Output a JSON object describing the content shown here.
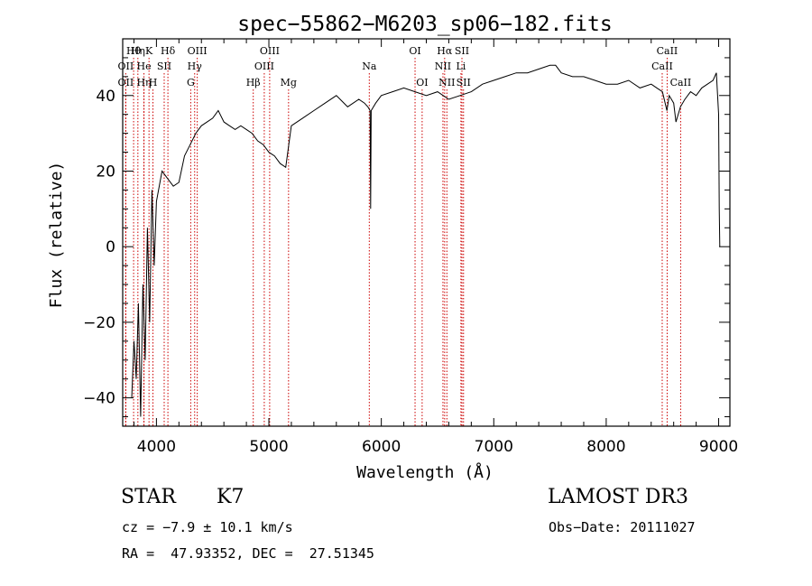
{
  "chart_data": {
    "type": "line",
    "title": "spec−55862−M6203_sp06−182.fits",
    "xlabel": "Wavelength (Å)",
    "ylabel": "Flux (relative)",
    "xlim": [
      3700,
      9100
    ],
    "ylim": [
      -47.5,
      55
    ],
    "xticks": [
      4000,
      5000,
      6000,
      7000,
      8000,
      9000
    ],
    "yticks": [
      -40,
      -20,
      0,
      20,
      40
    ],
    "tick_labels": {
      "x": [
        "4000",
        "5000",
        "6000",
        "7000",
        "8000",
        "9000"
      ],
      "y": [
        "−40",
        "−20",
        "0",
        "20",
        "40"
      ]
    },
    "series": [
      {
        "name": "flux",
        "x": [
          3700,
          3780,
          3800,
          3820,
          3840,
          3860,
          3880,
          3900,
          3920,
          3940,
          3960,
          3980,
          4000,
          4050,
          4100,
          4150,
          4200,
          4250,
          4300,
          4350,
          4400,
          4450,
          4500,
          4550,
          4600,
          4650,
          4700,
          4750,
          4800,
          4850,
          4900,
          4950,
          5000,
          5050,
          5100,
          5150,
          5200,
          5300,
          5400,
          5500,
          5600,
          5700,
          5800,
          5850,
          5880,
          5900,
          5905,
          5910,
          5950,
          6000,
          6100,
          6200,
          6300,
          6400,
          6500,
          6550,
          6600,
          6700,
          6800,
          6900,
          7000,
          7100,
          7200,
          7300,
          7400,
          7500,
          7550,
          7600,
          7700,
          7800,
          7900,
          8000,
          8100,
          8200,
          8300,
          8400,
          8450,
          8500,
          8540,
          8560,
          8600,
          8620,
          8660,
          8700,
          8750,
          8800,
          8850,
          8900,
          8950,
          8980,
          9000,
          9005,
          9010,
          9020
        ],
        "y": [
          null,
          -40,
          -25,
          -35,
          -15,
          -45,
          -10,
          -30,
          5,
          -20,
          15,
          -5,
          12,
          20,
          18,
          16,
          17,
          24,
          27,
          30,
          32,
          33,
          34,
          36,
          33,
          32,
          31,
          32,
          31,
          30,
          28,
          27,
          25,
          24,
          22,
          21,
          32,
          34,
          36,
          38,
          40,
          37,
          39,
          38,
          37,
          36,
          10,
          36,
          38,
          40,
          41,
          42,
          41,
          40,
          41,
          40,
          39,
          40,
          41,
          43,
          44,
          45,
          46,
          46,
          47,
          48,
          48,
          46,
          45,
          45,
          44,
          43,
          43,
          44,
          42,
          43,
          42,
          41,
          36,
          40,
          38,
          33,
          37,
          39,
          41,
          40,
          42,
          43,
          44,
          46,
          35,
          10,
          0,
          null
        ]
      }
    ],
    "line_markers": [
      {
        "label": "Hθ",
        "wavelength": 3797,
        "row": 1
      },
      {
        "label": "OII",
        "wavelength": 3727,
        "row": 2
      },
      {
        "label": "OII",
        "wavelength": 3727,
        "row": 3
      },
      {
        "label": "Hη",
        "wavelength": 3835,
        "row": 1
      },
      {
        "label": "He",
        "wavelength": 3889,
        "row": 2
      },
      {
        "label": "Hη",
        "wavelength": 3889,
        "row": 3
      },
      {
        "label": "K",
        "wavelength": 3934,
        "row": 1
      },
      {
        "label": "H",
        "wavelength": 3969,
        "row": 3
      },
      {
        "label": "SII",
        "wavelength": 4069,
        "row": 2
      },
      {
        "label": "Hδ",
        "wavelength": 4102,
        "row": 1
      },
      {
        "label": "OIII",
        "wavelength": 4363,
        "row": 1
      },
      {
        "label": "Hγ",
        "wavelength": 4340,
        "row": 2
      },
      {
        "label": "G",
        "wavelength": 4305,
        "row": 3
      },
      {
        "label": "Hβ",
        "wavelength": 4861,
        "row": 3
      },
      {
        "label": "OIII",
        "wavelength": 4959,
        "row": 2
      },
      {
        "label": "OIII",
        "wavelength": 5007,
        "row": 1
      },
      {
        "label": "Mg",
        "wavelength": 5175,
        "row": 3
      },
      {
        "label": "Na",
        "wavelength": 5893,
        "row": 2
      },
      {
        "label": "OI",
        "wavelength": 6300,
        "row": 1
      },
      {
        "label": "OI",
        "wavelength": 6363,
        "row": 3
      },
      {
        "label": "Hα",
        "wavelength": 6563,
        "row": 1
      },
      {
        "label": "NII",
        "wavelength": 6548,
        "row": 2
      },
      {
        "label": "NII",
        "wavelength": 6583,
        "row": 3
      },
      {
        "label": "SII",
        "wavelength": 6717,
        "row": 1
      },
      {
        "label": "Li",
        "wavelength": 6708,
        "row": 2
      },
      {
        "label": "SII",
        "wavelength": 6731,
        "row": 3
      },
      {
        "label": "CaII",
        "wavelength": 8542,
        "row": 1
      },
      {
        "label": "CaII",
        "wavelength": 8498,
        "row": 2
      },
      {
        "label": "CaII",
        "wavelength": 8662,
        "row": 3
      }
    ]
  },
  "info": {
    "object_class": "STAR",
    "subclass": "K7",
    "survey": "LAMOST DR3",
    "redshift_line": "cz = −7.9 ± 10.1 km/s",
    "obs_date_line": "Obs−Date: 20111027",
    "coords_line": "RA =  47.93352, DEC =  27.51345"
  },
  "colors": {
    "marker": "#cc0000",
    "axes": "#000000",
    "spectrum": "#000000"
  }
}
